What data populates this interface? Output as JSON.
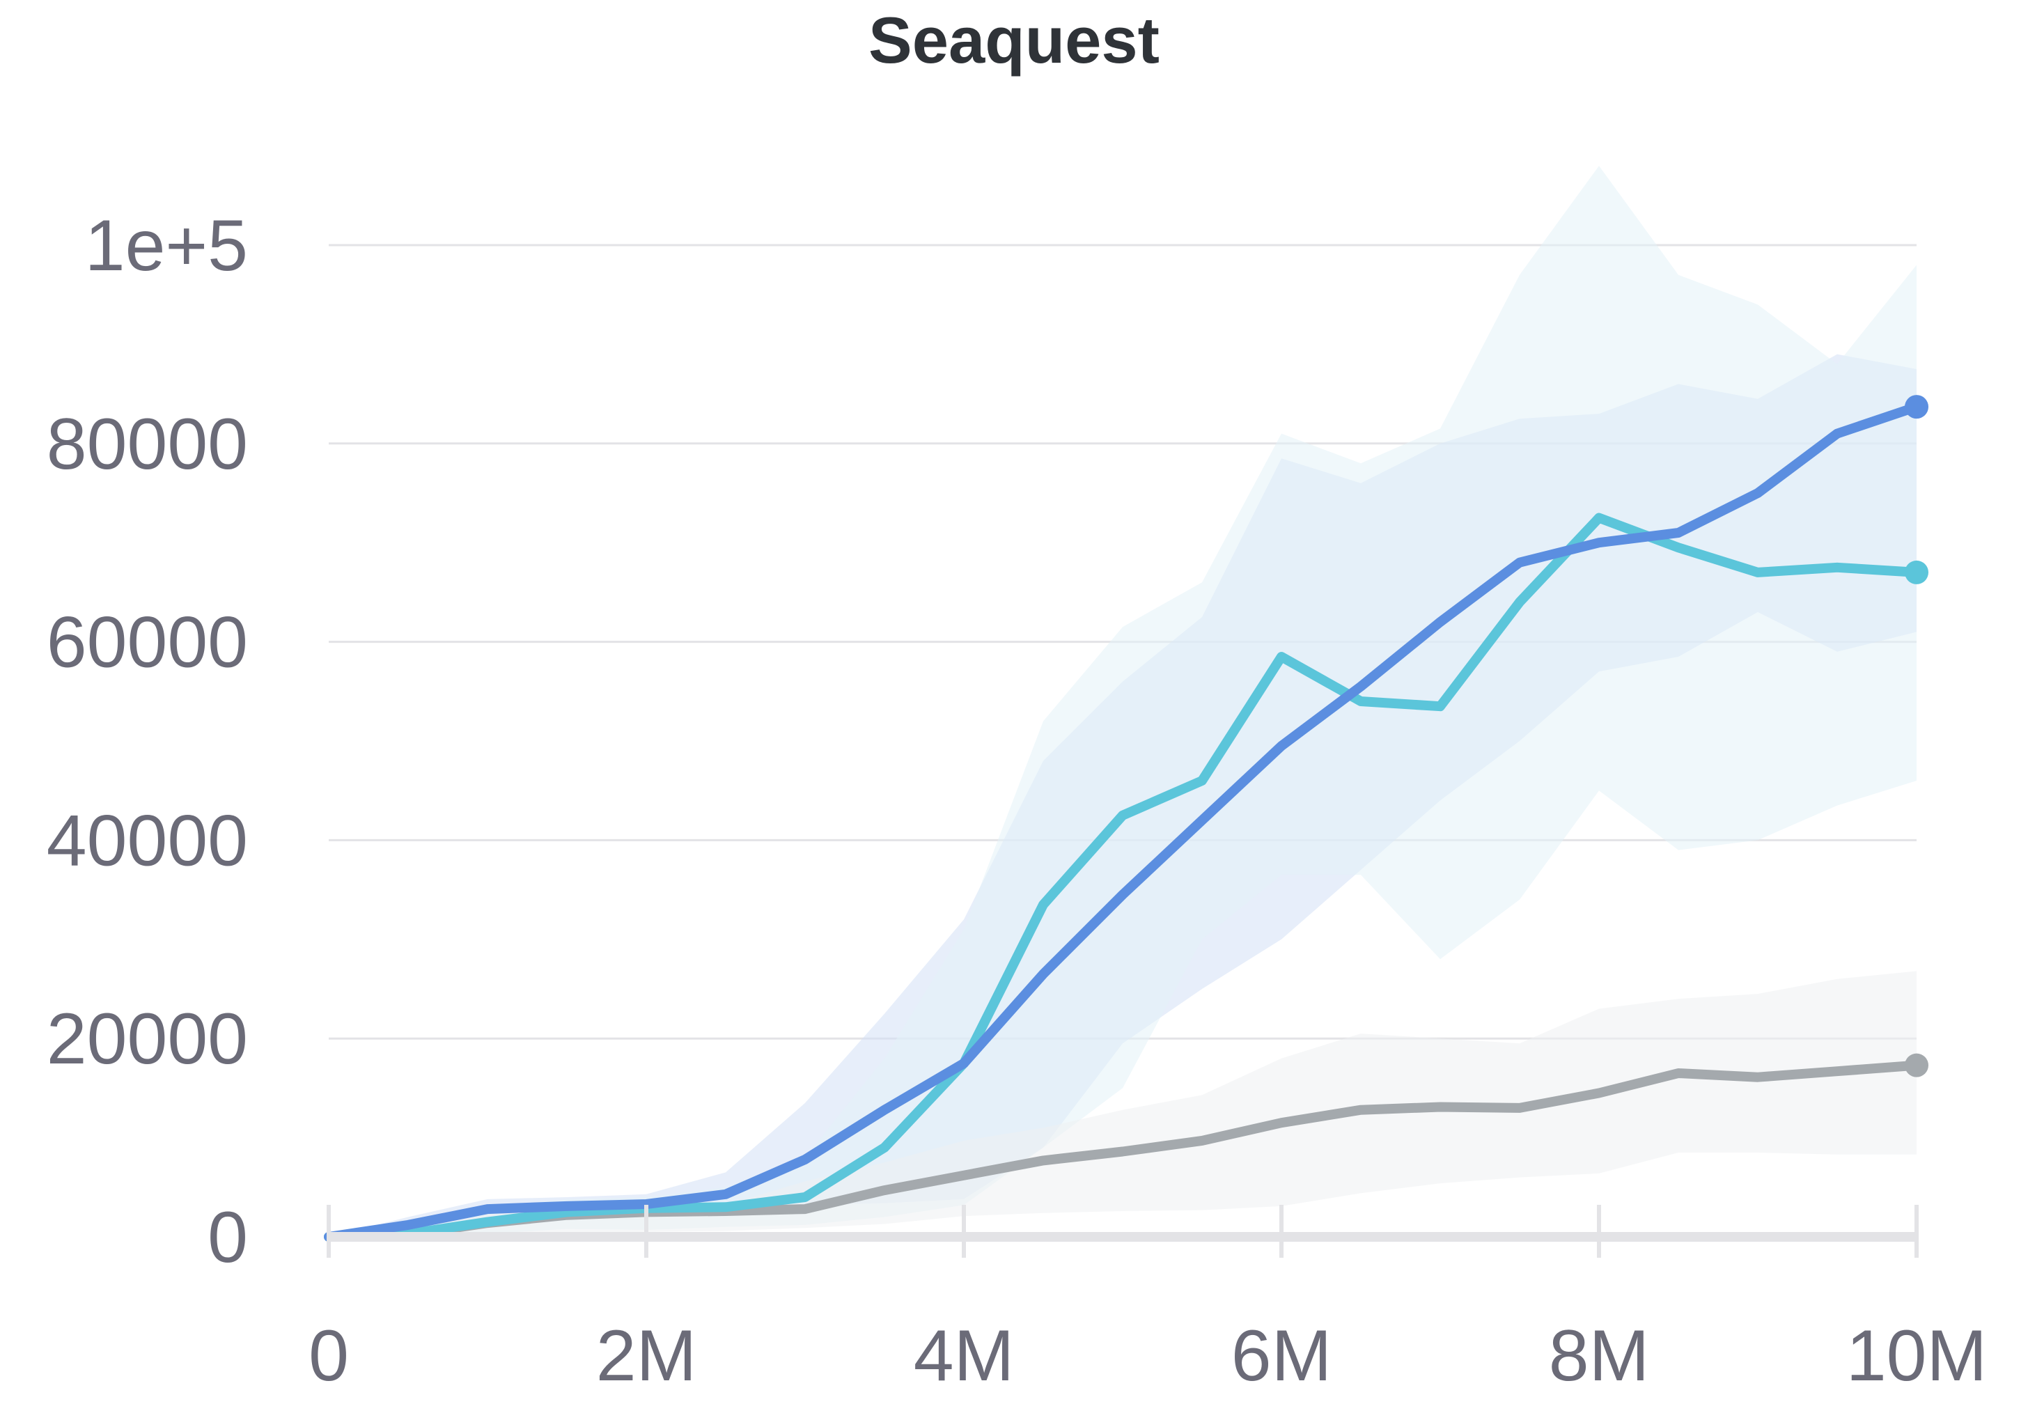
{
  "chart_data": {
    "type": "line",
    "title": "Seaquest",
    "xlabel": "",
    "ylabel": "",
    "xlim": [
      0,
      10000000
    ],
    "ylim": [
      0,
      100000
    ],
    "grid": true,
    "y_ticks": [
      {
        "value": 0,
        "label": "0"
      },
      {
        "value": 20000,
        "label": "20000"
      },
      {
        "value": 40000,
        "label": "40000"
      },
      {
        "value": 60000,
        "label": "60000"
      },
      {
        "value": 80000,
        "label": "80000"
      },
      {
        "value": 100000,
        "label": "1e+5"
      }
    ],
    "x_ticks": [
      {
        "value": 0,
        "label": "0"
      },
      {
        "value": 2000000,
        "label": "2M"
      },
      {
        "value": 4000000,
        "label": "4M"
      },
      {
        "value": 6000000,
        "label": "6M"
      },
      {
        "value": 8000000,
        "label": "8M"
      },
      {
        "value": 10000000,
        "label": "10M"
      }
    ],
    "x": [
      0,
      500000,
      1000000,
      1500000,
      2000000,
      2500000,
      3000000,
      3500000,
      4000000,
      4500000,
      5000000,
      5500000,
      6000000,
      6500000,
      7000000,
      7500000,
      8000000,
      8500000,
      9000000,
      9500000,
      10000000
    ],
    "series": [
      {
        "color": "#5b8ee0",
        "fill": "#d3e0f5",
        "values": [
          0,
          1200,
          2800,
          3100,
          3300,
          4300,
          7800,
          12800,
          17500,
          26500,
          34500,
          42000,
          49500,
          55500,
          62000,
          68000,
          70000,
          71000,
          75000,
          81000,
          83700
        ],
        "lower": [
          0,
          300,
          1500,
          2200,
          2700,
          3000,
          3200,
          3400,
          3800,
          9000,
          19500,
          25000,
          30000,
          37000,
          44000,
          50000,
          57000,
          58500,
          63000,
          59000,
          61000
        ],
        "upper": [
          0,
          2000,
          3800,
          4000,
          4300,
          6500,
          13500,
          22500,
          32000,
          48000,
          56000,
          62500,
          78500,
          76000,
          80000,
          82500,
          83000,
          86000,
          84500,
          89000,
          87500
        ]
      },
      {
        "color": "#5bc5da",
        "fill": "#e3f3f8",
        "values": [
          0,
          300,
          1500,
          2500,
          2900,
          3000,
          4000,
          9000,
          17500,
          33500,
          42500,
          46000,
          58500,
          54000,
          53500,
          64000,
          72500,
          69500,
          67000,
          67500,
          67000
        ],
        "lower": [
          0,
          0,
          300,
          800,
          700,
          1000,
          1200,
          2000,
          3200,
          9000,
          15000,
          30000,
          36500,
          36500,
          28000,
          34000,
          45000,
          39000,
          40000,
          43500,
          46000
        ],
        "upper": [
          0,
          600,
          3000,
          3800,
          4000,
          5000,
          8000,
          18000,
          31000,
          52000,
          61500,
          66000,
          81000,
          78000,
          81500,
          97000,
          108000,
          97000,
          94000,
          88000,
          98000
        ]
      },
      {
        "color": "#a4a9ad",
        "fill": "#eef0f2",
        "values": [
          0,
          200,
          1400,
          2200,
          2500,
          2600,
          2800,
          4700,
          6200,
          7700,
          8600,
          9700,
          11500,
          12800,
          13100,
          13000,
          14500,
          16500,
          16100,
          16700,
          17300
        ],
        "lower": [
          0,
          0,
          100,
          400,
          500,
          600,
          900,
          1300,
          2100,
          2400,
          2600,
          2700,
          3100,
          4400,
          5400,
          6000,
          6400,
          8500,
          8500,
          8300,
          8300
        ],
        "upper": [
          0,
          500,
          2300,
          2900,
          3000,
          3200,
          5600,
          7500,
          9700,
          11000,
          12800,
          14300,
          18000,
          20500,
          20000,
          19500,
          23000,
          24000,
          24500,
          26000,
          26800
        ]
      }
    ]
  }
}
